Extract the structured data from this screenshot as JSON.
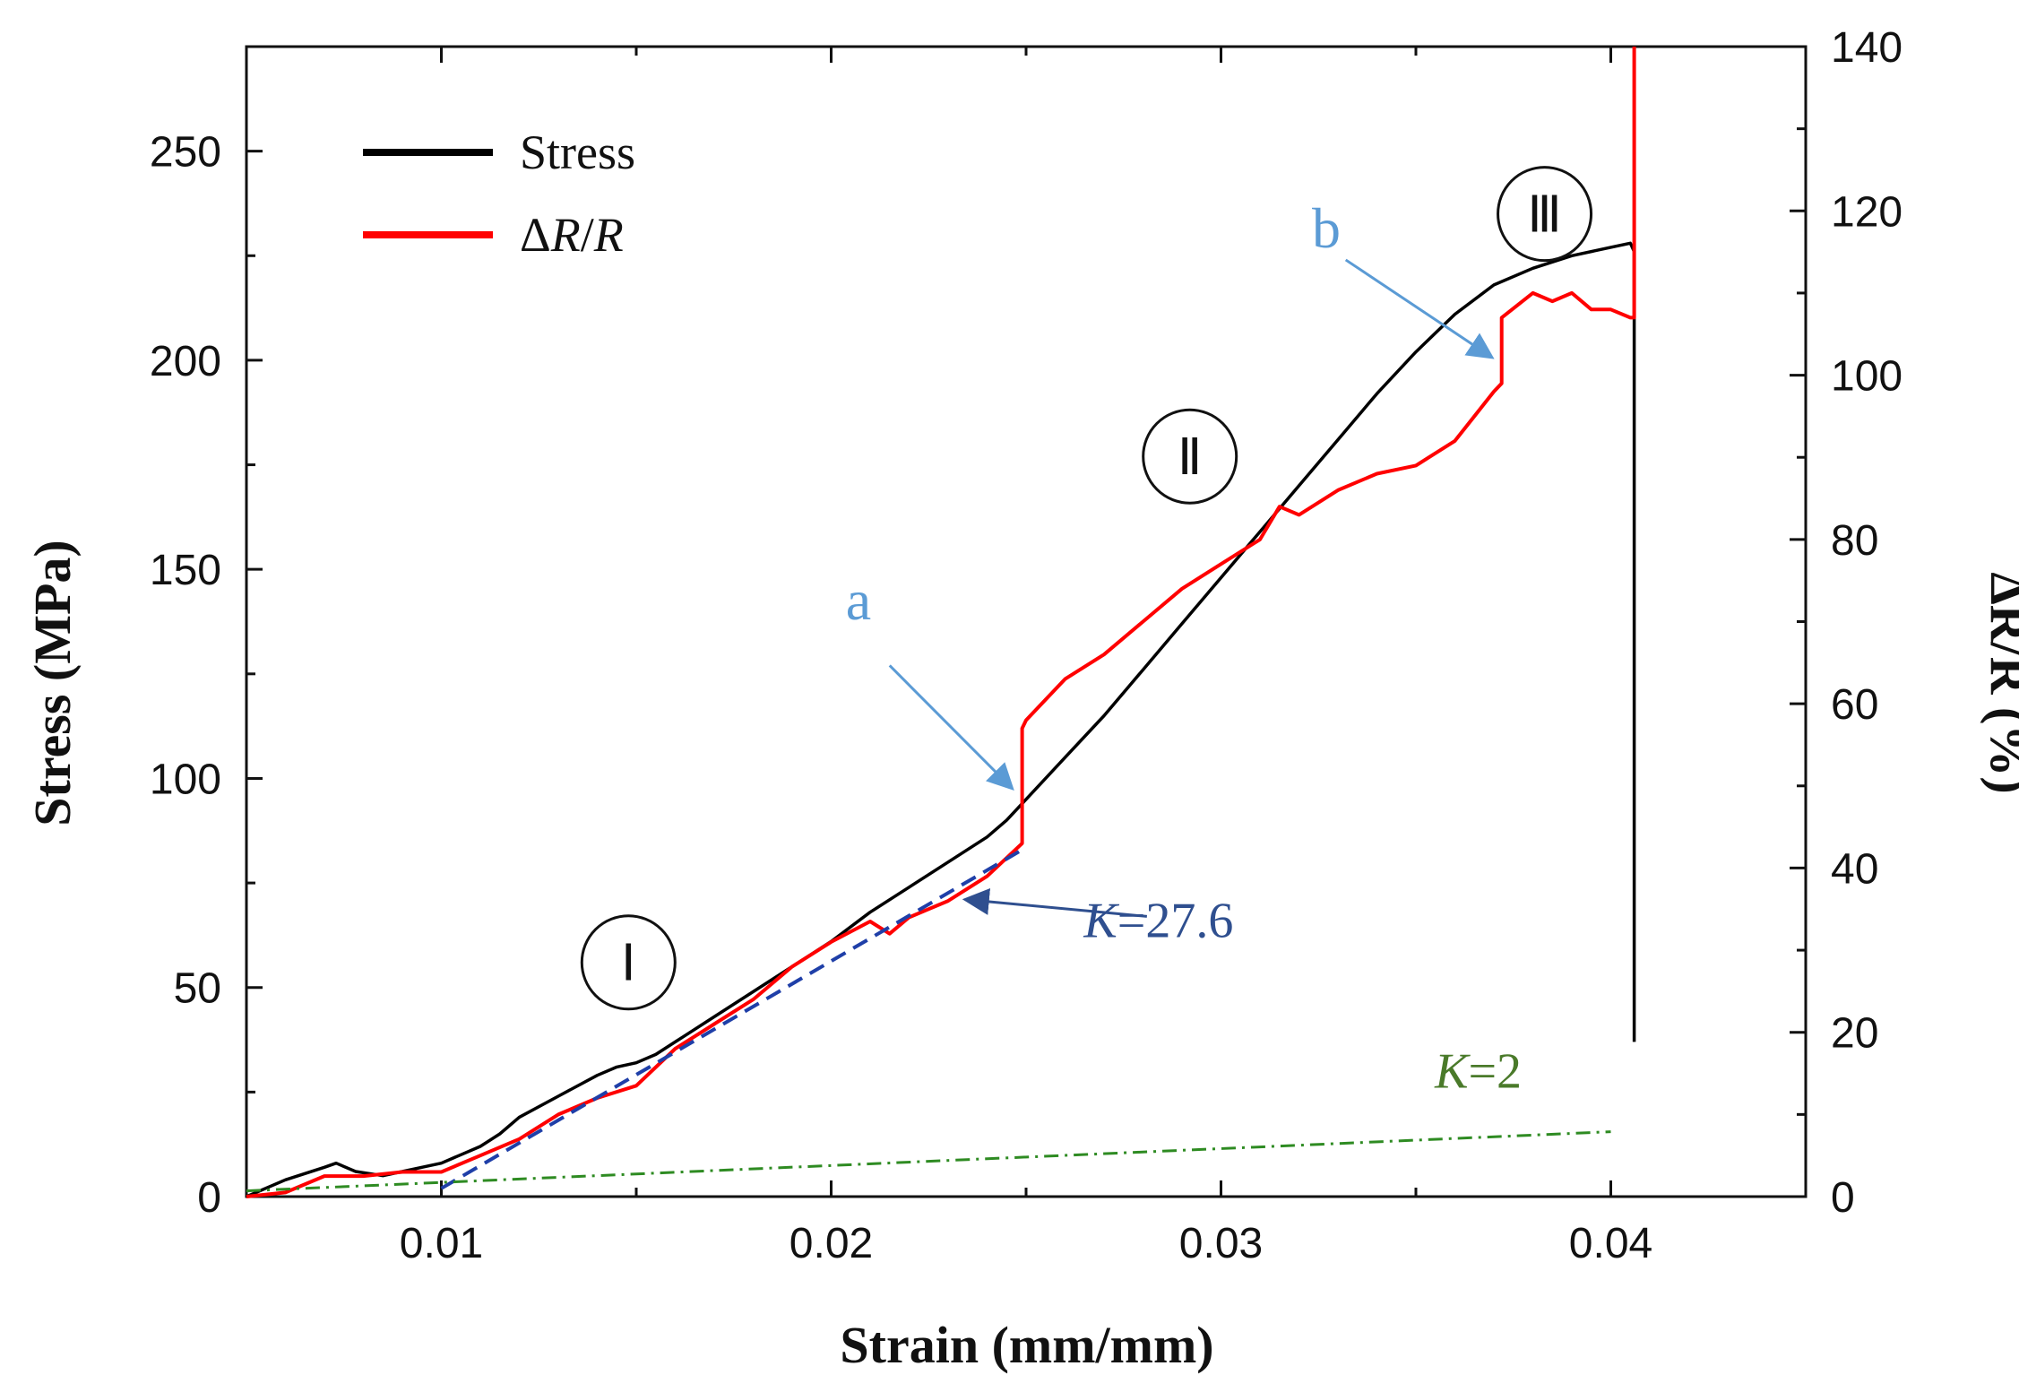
{
  "chart_data": {
    "type": "line",
    "title": "",
    "xlabel": "Strain (mm/mm)",
    "ylabel": "Stress (MPa)",
    "y2label": "ΔR/R (%)",
    "xlim": [
      0.005,
      0.045
    ],
    "ylim": [
      0,
      275
    ],
    "y2lim": [
      0,
      140
    ],
    "xticks": [
      0.01,
      0.02,
      0.03,
      0.04
    ],
    "xtick_labels": [
      "0.01",
      "0.02",
      "0.03",
      "0.04"
    ],
    "yticks": [
      0,
      50,
      100,
      150,
      200,
      250
    ],
    "ytick_labels": [
      "0",
      "50",
      "100",
      "150",
      "200",
      "250"
    ],
    "y2ticks": [
      0,
      20,
      40,
      60,
      80,
      100,
      120,
      140
    ],
    "y2tick_labels": [
      "0",
      "20",
      "40",
      "60",
      "80",
      "100",
      "120",
      "140"
    ],
    "grid": false,
    "legend_position": "top-left",
    "colors": {
      "stress": "#000000",
      "resistance": "#ff0000",
      "fit_k27": "#1f3fa8",
      "fit_k2": "#2e8b22",
      "annotation_light_blue": "#5b9bd5",
      "annotation_dark_blue": "#2f4f8f",
      "annotation_green": "#4a7a2a"
    },
    "legend": [
      {
        "key": "stress",
        "label": "Stress"
      },
      {
        "key": "resistance",
        "label_parts": [
          "Δ",
          "R",
          "/",
          "R"
        ]
      }
    ],
    "series": [
      {
        "key": "stress",
        "name": "Stress",
        "axis": "left",
        "x": [
          0.005,
          0.006,
          0.007,
          0.0073,
          0.0078,
          0.0085,
          0.009,
          0.0095,
          0.01,
          0.0105,
          0.011,
          0.0115,
          0.012,
          0.013,
          0.014,
          0.0145,
          0.015,
          0.0155,
          0.016,
          0.017,
          0.018,
          0.019,
          0.02,
          0.021,
          0.022,
          0.023,
          0.024,
          0.0245,
          0.025,
          0.026,
          0.027,
          0.028,
          0.029,
          0.03,
          0.031,
          0.032,
          0.033,
          0.034,
          0.035,
          0.036,
          0.037,
          0.038,
          0.039,
          0.04,
          0.0405,
          0.0406,
          0.0406
        ],
        "y": [
          0,
          4,
          7,
          8,
          6,
          5,
          6,
          7,
          8,
          10,
          12,
          15,
          19,
          24,
          29,
          31,
          32,
          34,
          37,
          43,
          49,
          55,
          61,
          68,
          74,
          80,
          86,
          90,
          95,
          105,
          115,
          126,
          137,
          148,
          159,
          170,
          181,
          192,
          202,
          211,
          218,
          222,
          225,
          227,
          228,
          226,
          37
        ]
      },
      {
        "key": "resistance",
        "name": "ΔR/R",
        "axis": "right",
        "x": [
          0.005,
          0.006,
          0.007,
          0.008,
          0.009,
          0.01,
          0.011,
          0.012,
          0.013,
          0.014,
          0.015,
          0.016,
          0.017,
          0.018,
          0.019,
          0.02,
          0.021,
          0.0215,
          0.022,
          0.023,
          0.024,
          0.0249,
          0.0249,
          0.025,
          0.026,
          0.027,
          0.028,
          0.029,
          0.03,
          0.031,
          0.0315,
          0.032,
          0.033,
          0.034,
          0.035,
          0.036,
          0.037,
          0.0372,
          0.0372,
          0.038,
          0.0385,
          0.039,
          0.0395,
          0.04,
          0.0405,
          0.0406,
          0.0406
        ],
        "y": [
          0,
          0.5,
          2.5,
          2.5,
          3,
          3,
          5,
          7,
          10,
          12,
          13.5,
          18,
          21,
          24,
          28,
          31,
          33.5,
          32,
          34,
          36,
          39,
          43,
          57,
          58,
          63,
          66,
          70,
          74,
          77,
          80,
          84,
          83,
          86,
          88,
          89,
          92,
          98,
          99,
          107,
          110,
          109,
          110,
          108,
          108,
          107,
          107,
          140
        ]
      },
      {
        "key": "fit_k27",
        "name": "K=27.6",
        "axis": "right",
        "style": "dashed",
        "x": [
          0.01,
          0.025
        ],
        "y": [
          1,
          42.5
        ]
      },
      {
        "key": "fit_k2",
        "name": "K=2",
        "axis": "right",
        "style": "dash-dot",
        "x": [
          0.005,
          0.04
        ],
        "y": [
          0.7,
          7.9
        ]
      }
    ],
    "annotations": [
      {
        "id": "region-1",
        "kind": "circle",
        "text": "Ⅰ",
        "x": 0.0148,
        "y": 56
      },
      {
        "id": "region-2",
        "kind": "circle",
        "text": "Ⅱ",
        "x": 0.0292,
        "y": 177
      },
      {
        "id": "region-3",
        "kind": "circle",
        "text": "Ⅲ",
        "x": 0.0383,
        "y": 235
      },
      {
        "id": "label-a",
        "kind": "arrow-label",
        "text": "a",
        "color": "annotation_light_blue",
        "tx": 0.0207,
        "ty": 138,
        "from": [
          0.0215,
          127
        ],
        "to": [
          0.0246,
          98
        ]
      },
      {
        "id": "label-b",
        "kind": "arrow-label",
        "text": "b",
        "color": "annotation_light_blue",
        "tx": 0.0327,
        "ty": 227,
        "from": [
          0.0332,
          224
        ],
        "to": [
          0.0369,
          201
        ]
      },
      {
        "id": "label-k27",
        "kind": "arrow-label",
        "text_italic": "K",
        "text_rest": "=27.6",
        "color": "annotation_dark_blue",
        "tx": 0.0284,
        "ty": 62,
        "from": [
          0.0281,
          67
        ],
        "to": [
          0.0235,
          71
        ]
      },
      {
        "id": "label-k2",
        "kind": "text",
        "text_italic": "K",
        "text_rest": "=2",
        "color": "annotation_green",
        "tx": 0.0366,
        "ty": 26
      }
    ]
  }
}
